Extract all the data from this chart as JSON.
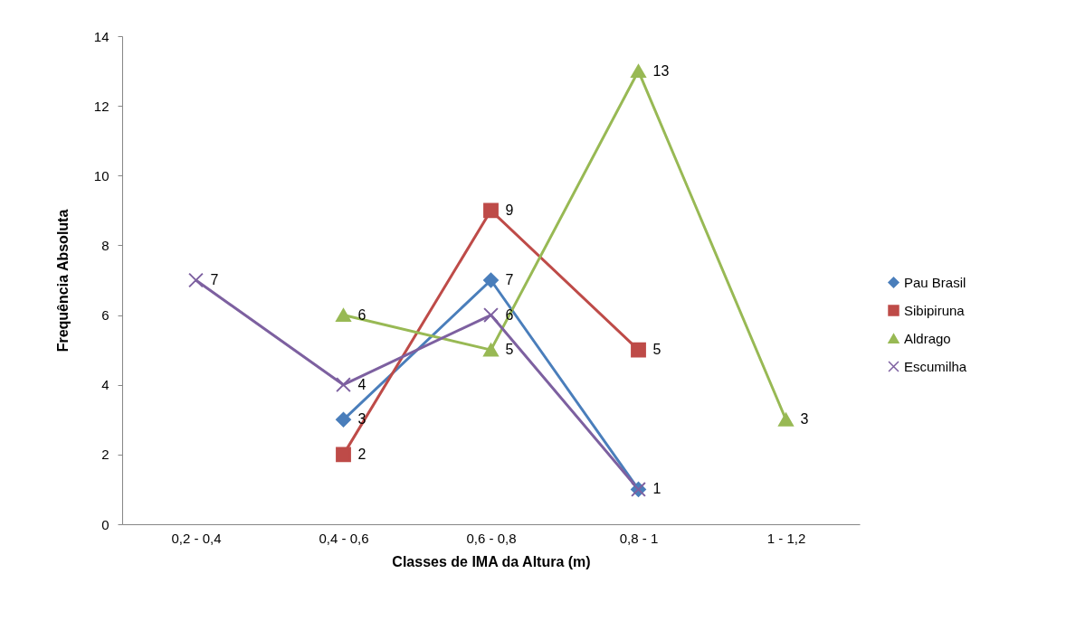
{
  "chart_data": {
    "type": "line",
    "xlabel": "Classes de IMA da Altura (m)",
    "ylabel": "Frequência Absoluta",
    "categories": [
      "0,2 - 0,4",
      "0,4 - 0,6",
      "0,6 - 0,8",
      "0,8 - 1",
      "1 - 1,2"
    ],
    "series": [
      {
        "name": "Pau Brasil",
        "color": "#4a7ebb",
        "marker": "diamond",
        "values": [
          null,
          3,
          7,
          1,
          null
        ],
        "value_labels": [
          null,
          "3",
          "7",
          "1",
          null
        ]
      },
      {
        "name": "Sibipiruna",
        "color": "#be4b48",
        "marker": "square",
        "values": [
          null,
          2,
          9,
          5,
          null
        ],
        "value_labels": [
          null,
          "2",
          "9",
          "5",
          null
        ]
      },
      {
        "name": "Aldrago",
        "color": "#98b954",
        "marker": "triangle",
        "values": [
          null,
          6,
          5,
          13,
          3
        ],
        "value_labels": [
          null,
          "6",
          "5",
          "13",
          "3"
        ]
      },
      {
        "name": "Escumilha",
        "color": "#7d60a0",
        "marker": "cross",
        "values": [
          7,
          4,
          6,
          1,
          null
        ],
        "value_labels": [
          "7",
          "4",
          "6",
          null,
          null
        ]
      }
    ],
    "ylim": [
      0,
      14
    ],
    "yticks": [
      0,
      2,
      4,
      6,
      8,
      10,
      12,
      14
    ],
    "grid": false,
    "legend": "right"
  }
}
